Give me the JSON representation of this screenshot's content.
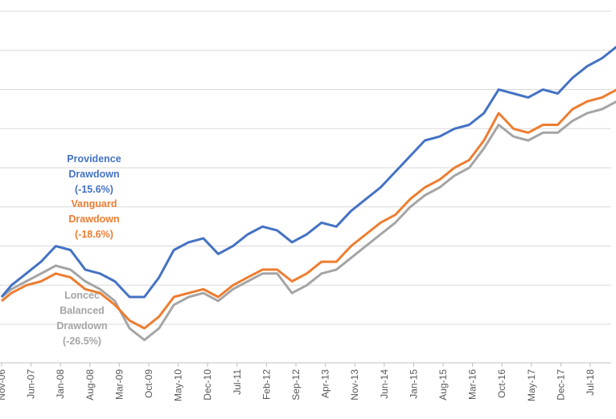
{
  "chart_data": {
    "type": "line",
    "title": "",
    "xlabel": "",
    "ylabel": "",
    "x_ticks": [
      "Nov-06",
      "Jun-07",
      "Jan-08",
      "Aug-08",
      "Mar-09",
      "Oct-09",
      "May-10",
      "Dec-10",
      "Jul-11",
      "Feb-12",
      "Sep-12",
      "Apr-13",
      "Nov-13",
      "Jun-14",
      "Jan-15",
      "Aug-15",
      "Mar-16",
      "Oct-16",
      "May-17",
      "Dec-17",
      "Jul-18"
    ],
    "x_start": "2006-11",
    "x_end": "2018-12",
    "y_axis": {
      "visible": false,
      "gridlines": 9
    },
    "grid": true,
    "series": [
      {
        "name": "Providence",
        "color": "#4472C4",
        "points": [
          [
            "2006-11",
            0.0
          ],
          [
            "2007-01",
            0.3
          ],
          [
            "2007-04",
            0.6
          ],
          [
            "2007-07",
            0.9
          ],
          [
            "2007-10",
            1.3
          ],
          [
            "2008-01",
            1.2
          ],
          [
            "2008-04",
            0.7
          ],
          [
            "2008-07",
            0.6
          ],
          [
            "2008-10",
            0.4
          ],
          [
            "2009-01",
            0.0
          ],
          [
            "2009-04",
            0.0
          ],
          [
            "2009-07",
            0.5
          ],
          [
            "2009-10",
            1.2
          ],
          [
            "2010-01",
            1.4
          ],
          [
            "2010-04",
            1.5
          ],
          [
            "2010-07",
            1.1
          ],
          [
            "2010-10",
            1.3
          ],
          [
            "2011-01",
            1.6
          ],
          [
            "2011-04",
            1.8
          ],
          [
            "2011-07",
            1.7
          ],
          [
            "2011-10",
            1.4
          ],
          [
            "2012-01",
            1.6
          ],
          [
            "2012-04",
            1.9
          ],
          [
            "2012-07",
            1.8
          ],
          [
            "2012-10",
            2.2
          ],
          [
            "2013-01",
            2.5
          ],
          [
            "2013-04",
            2.8
          ],
          [
            "2013-07",
            3.2
          ],
          [
            "2013-10",
            3.6
          ],
          [
            "2014-01",
            4.0
          ],
          [
            "2014-04",
            4.1
          ],
          [
            "2014-07",
            4.3
          ],
          [
            "2014-10",
            4.4
          ],
          [
            "2015-01",
            4.7
          ],
          [
            "2015-04",
            5.3
          ],
          [
            "2015-07",
            5.2
          ],
          [
            "2015-10",
            5.1
          ],
          [
            "2016-01",
            5.3
          ],
          [
            "2016-04",
            5.2
          ],
          [
            "2016-07",
            5.6
          ],
          [
            "2016-10",
            5.9
          ],
          [
            "2017-01",
            6.1
          ],
          [
            "2017-04",
            6.4
          ],
          [
            "2017-07",
            6.6
          ],
          [
            "2017-10",
            6.9
          ],
          [
            "2018-01",
            7.4
          ],
          [
            "2018-04",
            7.3
          ],
          [
            "2018-07",
            7.7
          ],
          [
            "2018-10",
            7.9
          ],
          [
            "2018-12",
            7.2
          ]
        ]
      },
      {
        "name": "Vanguard",
        "color": "#ED7D31",
        "points": [
          [
            "2006-11",
            -0.1
          ],
          [
            "2007-01",
            0.1
          ],
          [
            "2007-04",
            0.3
          ],
          [
            "2007-07",
            0.4
          ],
          [
            "2007-10",
            0.6
          ],
          [
            "2008-01",
            0.5
          ],
          [
            "2008-04",
            0.2
          ],
          [
            "2008-07",
            0.1
          ],
          [
            "2008-10",
            -0.2
          ],
          [
            "2009-01",
            -0.6
          ],
          [
            "2009-04",
            -0.8
          ],
          [
            "2009-07",
            -0.5
          ],
          [
            "2009-10",
            0.0
          ],
          [
            "2010-01",
            0.1
          ],
          [
            "2010-04",
            0.2
          ],
          [
            "2010-07",
            0.0
          ],
          [
            "2010-10",
            0.3
          ],
          [
            "2011-01",
            0.5
          ],
          [
            "2011-04",
            0.7
          ],
          [
            "2011-07",
            0.7
          ],
          [
            "2011-10",
            0.4
          ],
          [
            "2012-01",
            0.6
          ],
          [
            "2012-04",
            0.9
          ],
          [
            "2012-07",
            0.9
          ],
          [
            "2012-10",
            1.3
          ],
          [
            "2013-01",
            1.6
          ],
          [
            "2013-04",
            1.9
          ],
          [
            "2013-07",
            2.1
          ],
          [
            "2013-10",
            2.5
          ],
          [
            "2014-01",
            2.8
          ],
          [
            "2014-04",
            3.0
          ],
          [
            "2014-07",
            3.3
          ],
          [
            "2014-10",
            3.5
          ],
          [
            "2015-01",
            4.0
          ],
          [
            "2015-04",
            4.7
          ],
          [
            "2015-07",
            4.3
          ],
          [
            "2015-10",
            4.2
          ],
          [
            "2016-01",
            4.4
          ],
          [
            "2016-04",
            4.4
          ],
          [
            "2016-07",
            4.8
          ],
          [
            "2016-10",
            5.0
          ],
          [
            "2017-01",
            5.1
          ],
          [
            "2017-04",
            5.3
          ],
          [
            "2017-07",
            5.5
          ],
          [
            "2017-10",
            5.7
          ],
          [
            "2018-01",
            6.0
          ],
          [
            "2018-04",
            5.9
          ],
          [
            "2018-07",
            6.3
          ],
          [
            "2018-10",
            6.6
          ],
          [
            "2018-12",
            6.0
          ]
        ]
      },
      {
        "name": "Loncec Balanced",
        "color": "#A5A5A5",
        "points": [
          [
            "2006-11",
            0.0
          ],
          [
            "2007-01",
            0.2
          ],
          [
            "2007-04",
            0.4
          ],
          [
            "2007-07",
            0.6
          ],
          [
            "2007-10",
            0.8
          ],
          [
            "2008-01",
            0.7
          ],
          [
            "2008-04",
            0.4
          ],
          [
            "2008-07",
            0.2
          ],
          [
            "2008-10",
            -0.1
          ],
          [
            "2009-01",
            -0.8
          ],
          [
            "2009-04",
            -1.1
          ],
          [
            "2009-07",
            -0.8
          ],
          [
            "2009-10",
            -0.2
          ],
          [
            "2010-01",
            0.0
          ],
          [
            "2010-04",
            0.1
          ],
          [
            "2010-07",
            -0.1
          ],
          [
            "2010-10",
            0.2
          ],
          [
            "2011-01",
            0.4
          ],
          [
            "2011-04",
            0.6
          ],
          [
            "2011-07",
            0.6
          ],
          [
            "2011-10",
            0.1
          ],
          [
            "2012-01",
            0.3
          ],
          [
            "2012-04",
            0.6
          ],
          [
            "2012-07",
            0.7
          ],
          [
            "2012-10",
            1.0
          ],
          [
            "2013-01",
            1.3
          ],
          [
            "2013-04",
            1.6
          ],
          [
            "2013-07",
            1.9
          ],
          [
            "2013-10",
            2.3
          ],
          [
            "2014-01",
            2.6
          ],
          [
            "2014-04",
            2.8
          ],
          [
            "2014-07",
            3.1
          ],
          [
            "2014-10",
            3.3
          ],
          [
            "2015-01",
            3.8
          ],
          [
            "2015-04",
            4.4
          ],
          [
            "2015-07",
            4.1
          ],
          [
            "2015-10",
            4.0
          ],
          [
            "2016-01",
            4.2
          ],
          [
            "2016-04",
            4.2
          ],
          [
            "2016-07",
            4.5
          ],
          [
            "2016-10",
            4.7
          ],
          [
            "2017-01",
            4.8
          ],
          [
            "2017-04",
            5.0
          ],
          [
            "2017-07",
            5.2
          ],
          [
            "2017-10",
            5.4
          ],
          [
            "2018-01",
            5.7
          ],
          [
            "2018-04",
            5.6
          ],
          [
            "2018-07",
            6.0
          ],
          [
            "2018-10",
            6.3
          ],
          [
            "2018-12",
            5.8
          ]
        ]
      }
    ],
    "annotations": [
      {
        "lines": [
          "Providence",
          "Drawdown",
          "(-15.6%)"
        ],
        "color": "#4472C4"
      },
      {
        "lines": [
          "Vanguard",
          "Drawdown",
          "(-18.6%)"
        ],
        "color": "#ED7D31"
      },
      {
        "lines": [
          "Loncec",
          "Balanced",
          "Drawdown",
          "(-26.5%)"
        ],
        "color": "#A5A5A5"
      }
    ]
  }
}
